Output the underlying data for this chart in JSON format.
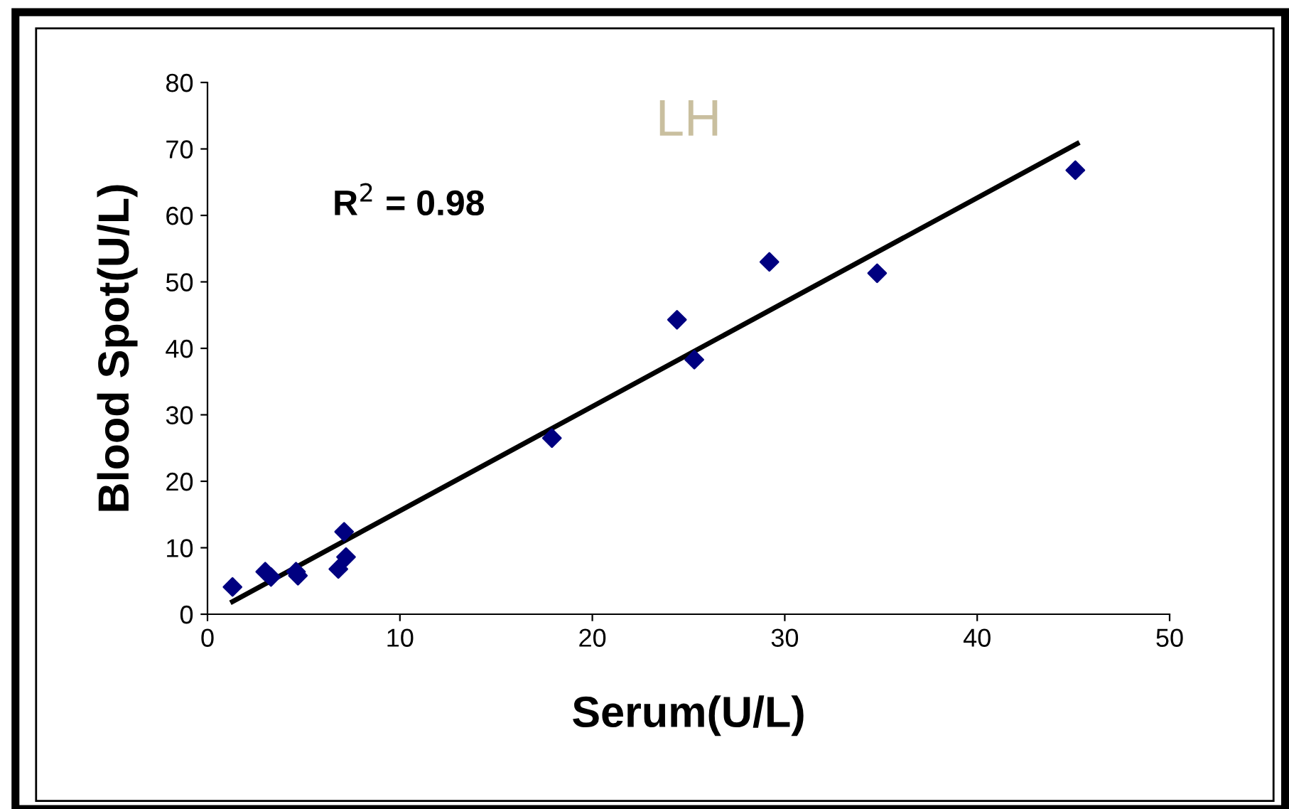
{
  "chart_data": {
    "type": "scatter",
    "title": "LH",
    "xlabel": "Serum(U/L)",
    "ylabel": "Blood Spot(U/L)",
    "annotations": [
      "R$^{2}$ = 0.98"
    ],
    "xlim": [
      0,
      50
    ],
    "ylim": [
      0,
      80
    ],
    "xticks": [
      0,
      10,
      20,
      30,
      40,
      50
    ],
    "yticks": [
      0,
      10,
      20,
      30,
      40,
      50,
      60,
      70,
      80
    ],
    "grid": false,
    "legend": false,
    "marker": "diamond",
    "series": [
      {
        "color": "#000080",
        "x": [
          1.3,
          3.0,
          3.3,
          4.6,
          4.7,
          7.1,
          7.2,
          6.8,
          17.9,
          24.4,
          25.3,
          29.2,
          34.8,
          45.1
        ],
        "values": [
          4.1,
          6.4,
          5.6,
          6.4,
          5.8,
          12.4,
          8.6,
          6.8,
          26.5,
          44.3,
          38.3,
          53.0,
          51.3,
          66.8
        ]
      },
      {
        "type": "line",
        "color": "#000000",
        "marker": "none",
        "line_style": "solid",
        "x": [
          1.3,
          45.2
        ],
        "values": [
          1.9,
          70.8
        ]
      }
    ]
  }
}
